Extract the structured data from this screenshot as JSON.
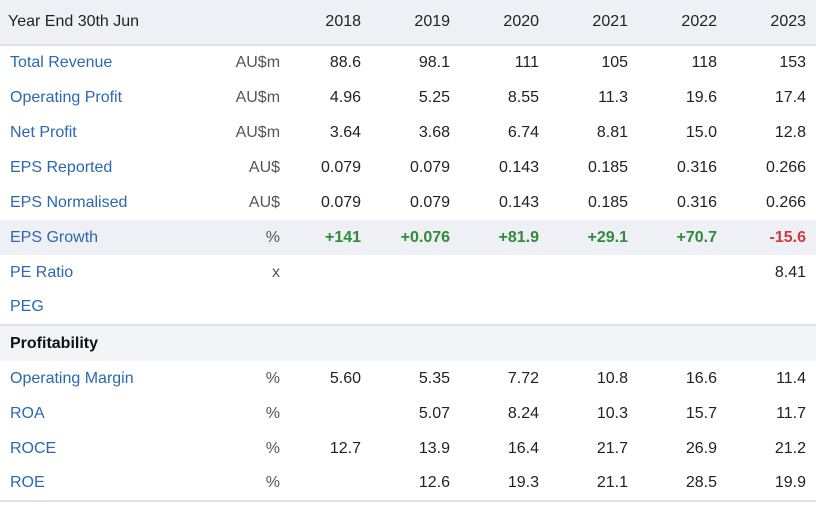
{
  "header": {
    "label": "Year End 30th Jun",
    "years": [
      "2018",
      "2019",
      "2020",
      "2021",
      "2022",
      "2023"
    ]
  },
  "rows": [
    {
      "label": "Total Revenue",
      "unit": "AU$m",
      "values": [
        "88.6",
        "98.1",
        "111",
        "105",
        "118",
        "153"
      ]
    },
    {
      "label": "Operating Profit",
      "unit": "AU$m",
      "values": [
        "4.96",
        "5.25",
        "8.55",
        "11.3",
        "19.6",
        "17.4"
      ]
    },
    {
      "label": "Net Profit",
      "unit": "AU$m",
      "values": [
        "3.64",
        "3.68",
        "6.74",
        "8.81",
        "15.0",
        "12.8"
      ]
    },
    {
      "label": "EPS Reported",
      "unit": "AU$",
      "values": [
        "0.079",
        "0.079",
        "0.143",
        "0.185",
        "0.316",
        "0.266"
      ]
    },
    {
      "label": "EPS Normalised",
      "unit": "AU$",
      "values": [
        "0.079",
        "0.079",
        "0.143",
        "0.185",
        "0.316",
        "0.266"
      ]
    },
    {
      "label": "EPS Growth",
      "unit": "%",
      "values": [
        "+141",
        "+0.076",
        "+81.9",
        "+29.1",
        "+70.7",
        "-15.6"
      ]
    },
    {
      "label": "PE Ratio",
      "unit": "x",
      "values": [
        "",
        "",
        "",
        "",
        "",
        "8.41"
      ]
    },
    {
      "label": "PEG",
      "unit": "",
      "values": [
        "",
        "",
        "",
        "",
        "",
        ""
      ]
    }
  ],
  "section": {
    "title": "Profitability"
  },
  "profitability_rows": [
    {
      "label": "Operating Margin",
      "unit": "%",
      "values": [
        "5.60",
        "5.35",
        "7.72",
        "10.8",
        "16.6",
        "11.4"
      ]
    },
    {
      "label": "ROA",
      "unit": "%",
      "values": [
        "",
        "5.07",
        "8.24",
        "10.3",
        "15.7",
        "11.7"
      ]
    },
    {
      "label": "ROCE",
      "unit": "%",
      "values": [
        "12.7",
        "13.9",
        "16.4",
        "21.7",
        "26.9",
        "21.2"
      ]
    },
    {
      "label": "ROE",
      "unit": "%",
      "values": [
        "",
        "12.6",
        "19.3",
        "21.1",
        "28.5",
        "19.9"
      ]
    }
  ],
  "colors": {
    "link": "#2b68b0",
    "positive": "#2e8b3a",
    "negative": "#d23a3a",
    "header_bg": "#eef0f5"
  }
}
